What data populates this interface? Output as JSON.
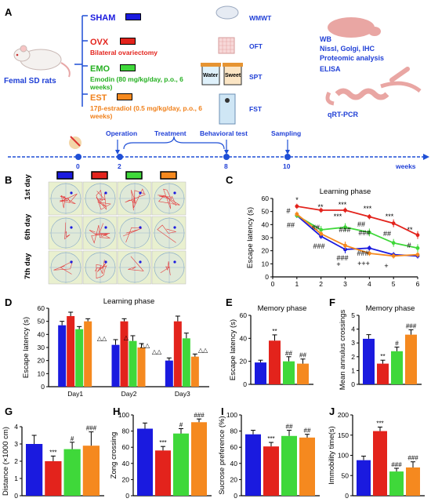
{
  "panel_labels": [
    "A",
    "B",
    "C",
    "D",
    "E",
    "F",
    "G",
    "H",
    "I",
    "J"
  ],
  "colors": {
    "sham": "#1a1adf",
    "ovx": "#e3231c",
    "emo": "#3fd83a",
    "est": "#f5891f",
    "timeline": "#1f4fd6"
  },
  "panelA": {
    "animal_label": "Femal SD rats",
    "groups": [
      {
        "name": "SHAM",
        "desc": "",
        "color": "#1a1adf"
      },
      {
        "name": "OVX",
        "desc": "Bilateral ovariectomy",
        "color": "#e3231c"
      },
      {
        "name": "EMO",
        "desc": "Emodin (80 mg/kg/day, p.o., 6 weeks)",
        "color": "#3fd83a"
      },
      {
        "name": "EST",
        "desc": "17β-estradiol (0.5 mg/kg/day, p.o., 6 weeks)",
        "color": "#f5891f"
      }
    ],
    "tests": [
      "WMWT",
      "OFT",
      "SPT",
      "FST"
    ],
    "spt_bottles": [
      "Water",
      "Sweet"
    ],
    "analyses": [
      "WB",
      "Nissl, Golgi, IHC",
      "Proteomic analysis",
      "ELISA",
      "qRT-PCR"
    ],
    "timeline": {
      "events": [
        "Operation",
        "Treatment",
        "Behavioral test",
        "Sampling"
      ],
      "ticks": [
        "0",
        "2",
        "8",
        "10"
      ],
      "unit": "weeks"
    }
  },
  "panelB": {
    "rows": [
      "1st day",
      "6th day",
      "7th day"
    ]
  },
  "chart_data": [
    {
      "panel": "C",
      "type": "line",
      "title": "Learning phase",
      "xlabel": "",
      "ylabel": "Escape latency (s)",
      "x": [
        1,
        2,
        3,
        4,
        5,
        6
      ],
      "xlim": [
        0,
        6
      ],
      "ylim": [
        0,
        60
      ],
      "xticks": [
        "0",
        "1",
        "2",
        "3",
        "4",
        "5",
        "6"
      ],
      "yticks": [
        "0",
        "10",
        "20",
        "30",
        "40",
        "50",
        "60"
      ],
      "series": [
        {
          "key": "SHAM",
          "values": [
            47,
            31,
            21,
            22,
            17,
            16
          ],
          "err": [
            2,
            2,
            3,
            2,
            2,
            2
          ],
          "color": "#1a1adf"
        },
        {
          "key": "OVX",
          "values": [
            54,
            51,
            51,
            46,
            41,
            32
          ],
          "err": [
            2,
            2,
            2,
            2,
            3,
            3
          ],
          "color": "#e3231c"
        },
        {
          "key": "EMO",
          "values": [
            47,
            36,
            38,
            34,
            26,
            22
          ],
          "err": [
            2,
            3,
            3,
            3,
            3,
            3
          ],
          "color": "#3fd83a"
        },
        {
          "key": "EST",
          "values": [
            48,
            33,
            24,
            18,
            16,
            17
          ],
          "err": [
            2,
            2,
            3,
            2,
            2,
            2
          ],
          "color": "#f5891f"
        }
      ],
      "annotations": [
        "*",
        "**",
        "***",
        "***",
        "***",
        "**",
        "#",
        "##",
        "##",
        "***",
        "##",
        "###",
        "#",
        "##",
        "###",
        "###",
        "###",
        "###",
        "+",
        "+++",
        "+"
      ]
    },
    {
      "panel": "D",
      "type": "bar",
      "title": "Learning phase",
      "xlabel": "",
      "ylabel": "Escape latency (s)",
      "categories": [
        "Day1",
        "Day2",
        "Day3"
      ],
      "ylim": [
        0,
        60
      ],
      "yticks": [
        "0",
        "10",
        "20",
        "30",
        "40",
        "50",
        "60"
      ],
      "series": [
        {
          "key": "SHAM",
          "values": [
            47,
            32,
            20
          ],
          "err": [
            3,
            4,
            2
          ],
          "color": "#1a1adf"
        },
        {
          "key": "OVX",
          "values": [
            54,
            50,
            50
          ],
          "err": [
            3,
            2,
            4
          ],
          "color": "#e3231c"
        },
        {
          "key": "EMO",
          "values": [
            44,
            35,
            37
          ],
          "err": [
            2,
            4,
            4
          ],
          "color": "#3fd83a"
        },
        {
          "key": "EST",
          "values": [
            50,
            30,
            23
          ],
          "err": [
            2,
            3,
            2
          ],
          "color": "#f5891f"
        }
      ],
      "annotations": [
        "△△",
        "△",
        "△△",
        "△△",
        "△△"
      ]
    },
    {
      "panel": "E",
      "type": "bar",
      "title": "Memory phase",
      "xlabel": "",
      "ylabel": "Escape latency (s)",
      "ylim": [
        0,
        60
      ],
      "yticks": [
        "0",
        "20",
        "40",
        "60"
      ],
      "values": [
        19,
        38,
        20,
        18
      ],
      "err": [
        2,
        5,
        4,
        4
      ],
      "sig": [
        "",
        "**",
        "##",
        "##"
      ]
    },
    {
      "panel": "F",
      "type": "bar",
      "title": "Memory phase",
      "xlabel": "",
      "ylabel": "Mean annulus crossings",
      "ylim": [
        0,
        5
      ],
      "yticks": [
        "0",
        "1",
        "2",
        "3",
        "4",
        "5"
      ],
      "values": [
        3.3,
        1.5,
        2.4,
        3.6
      ],
      "err": [
        0.3,
        0.25,
        0.3,
        0.35
      ],
      "sig": [
        "",
        "**",
        "#",
        "###"
      ]
    },
    {
      "panel": "G",
      "type": "bar",
      "title": "",
      "xlabel": "",
      "ylabel": "Distance (×1000 cm)",
      "ylim": [
        0,
        4
      ],
      "yticks": [
        "0",
        "1",
        "2",
        "3",
        "4"
      ],
      "values": [
        3.0,
        2.0,
        2.7,
        2.9
      ],
      "err": [
        0.5,
        0.3,
        0.4,
        0.8
      ],
      "sig": [
        "",
        "***",
        "#",
        "###"
      ]
    },
    {
      "panel": "H",
      "type": "bar",
      "title": "",
      "xlabel": "",
      "ylabel": "Zong crossing",
      "ylim": [
        0,
        100
      ],
      "yticks": [
        "0",
        "20",
        "40",
        "60",
        "80",
        "100"
      ],
      "values": [
        83,
        56,
        77,
        91
      ],
      "err": [
        7,
        5,
        6,
        4
      ],
      "sig": [
        "",
        "***",
        "#",
        "###"
      ]
    },
    {
      "panel": "I",
      "type": "bar",
      "title": "",
      "xlabel": "",
      "ylabel": "Sucrose preference (%)",
      "ylim": [
        0,
        100
      ],
      "yticks": [
        "0",
        "20",
        "40",
        "60",
        "80",
        "100"
      ],
      "values": [
        76,
        61,
        74,
        72
      ],
      "err": [
        5,
        5,
        7,
        4
      ],
      "sig": [
        "",
        "***",
        "##",
        "##"
      ]
    },
    {
      "panel": "J",
      "type": "bar",
      "title": "",
      "xlabel": "",
      "ylabel": "Immobility time(s)",
      "ylim": [
        0,
        200
      ],
      "yticks": [
        "0",
        "50",
        "100",
        "150",
        "200"
      ],
      "values": [
        88,
        160,
        60,
        70
      ],
      "err": [
        10,
        10,
        8,
        14
      ],
      "sig": [
        "",
        "***",
        "###",
        "###"
      ]
    }
  ]
}
